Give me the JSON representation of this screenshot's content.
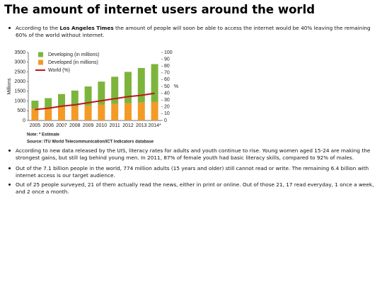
{
  "title": "The amount of internet users around the world",
  "bullets": [
    {
      "parts": [
        "According to the ",
        "Los Angeles Times",
        " the amount of people will soon be able to access the internet would be 40% leaving the remaining 60% of the world without internet."
      ]
    },
    {
      "parts": [
        "According to new data released by the UIS, literacy rates for adults and youth continue to rise. Young women aged 15-24 are making the strongest gains, but still lag behind young men. In 2011, 87% of female youth had basic literacy skills, compared to 92% of males."
      ]
    },
    {
      "parts": [
        "Out of the 7.1 billion people in the world, 774 million adults (15 years and older) still cannot read or write. The remaining 6.4 billion with internet access is our target audience."
      ]
    },
    {
      "parts": [
        "Out of 25 people surveyed, 21 of them actually read the news, either in print or online. Out of those 21, 17 read everyday, 1 once a week, and 2 once a month."
      ]
    }
  ],
  "chart_data": {
    "type": "bar",
    "ylabel": "Millions",
    "y2label": "%",
    "note": "Note: * Estimate",
    "source": "Source: ITU World Telecommunication/ICT Indicators database",
    "categories": [
      "2005",
      "2006",
      "2007",
      "2008",
      "2009",
      "2010",
      "2011",
      "2012",
      "2013",
      "2014*"
    ],
    "series": [
      {
        "name": "Developing (in millions)",
        "color": "#7db53c",
        "values": [
          420,
          500,
          660,
          810,
          980,
          1180,
          1390,
          1610,
          1780,
          1950
        ]
      },
      {
        "name": "Developed (in millions)",
        "color": "#f39a27",
        "values": [
          600,
          650,
          700,
          730,
          770,
          820,
          860,
          890,
          920,
          950
        ]
      },
      {
        "name": "World (%)",
        "color": "#c0161b",
        "type": "line",
        "axis": "y2",
        "values": [
          16,
          18,
          21,
          23,
          26,
          29,
          32,
          35,
          37,
          40
        ]
      }
    ],
    "stacked": true,
    "ylim": [
      0,
      3500
    ],
    "yticks": [
      0,
      500,
      1000,
      1500,
      2000,
      2500,
      3000,
      3500
    ],
    "y2lim": [
      0,
      100
    ],
    "y2ticks": [
      0,
      10,
      20,
      30,
      40,
      50,
      60,
      70,
      80,
      90,
      100
    ],
    "legend": "upper left"
  }
}
